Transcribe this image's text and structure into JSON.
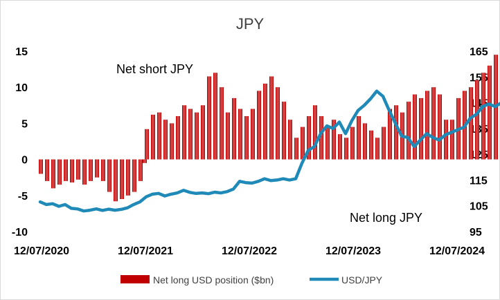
{
  "chart_data": {
    "type": "bar+line",
    "title": "JPY",
    "x_tick_labels": [
      "12/07/2020",
      "12/07/2021",
      "12/07/2022",
      "12/07/2023",
      "12/07/2024"
    ],
    "y_left": {
      "ticks": [
        15,
        10,
        5,
        0,
        -5,
        -10
      ],
      "range": [
        -10,
        15
      ]
    },
    "y_right": {
      "ticks": [
        165,
        155,
        145,
        135,
        125,
        115,
        105,
        95
      ],
      "range": [
        95,
        165
      ]
    },
    "annotations": [
      "Net short JPY",
      "Net long JPY"
    ],
    "series": [
      {
        "name": "Net long USD position ($bn)",
        "type": "bar",
        "axis": "left",
        "color": "#c00000",
        "points": [
          [
            0.0,
            -2.0
          ],
          [
            0.06,
            -3.0
          ],
          [
            0.12,
            -4.0
          ],
          [
            0.18,
            -3.5
          ],
          [
            0.24,
            -3.0
          ],
          [
            0.3,
            -3.2
          ],
          [
            0.36,
            -2.8
          ],
          [
            0.42,
            -3.5
          ],
          [
            0.48,
            -3.0
          ],
          [
            0.54,
            -2.5
          ],
          [
            0.6,
            -3.0
          ],
          [
            0.66,
            -4.5
          ],
          [
            0.72,
            -5.8
          ],
          [
            0.78,
            -5.5
          ],
          [
            0.84,
            -5.0
          ],
          [
            0.9,
            -4.5
          ],
          [
            0.96,
            -3.0
          ],
          [
            1.0,
            -0.5
          ],
          [
            1.02,
            4.2
          ],
          [
            1.08,
            6.2
          ],
          [
            1.14,
            6.5
          ],
          [
            1.2,
            5.5
          ],
          [
            1.26,
            5.0
          ],
          [
            1.32,
            6.0
          ],
          [
            1.38,
            7.5
          ],
          [
            1.44,
            7.0
          ],
          [
            1.5,
            6.5
          ],
          [
            1.56,
            7.5
          ],
          [
            1.62,
            11.5
          ],
          [
            1.68,
            12.0
          ],
          [
            1.74,
            10.0
          ],
          [
            1.8,
            6.5
          ],
          [
            1.86,
            8.5
          ],
          [
            1.92,
            7.0
          ],
          [
            1.98,
            6.0
          ],
          [
            2.04,
            7.0
          ],
          [
            2.1,
            9.5
          ],
          [
            2.16,
            10.5
          ],
          [
            2.22,
            11.5
          ],
          [
            2.28,
            10.0
          ],
          [
            2.34,
            8.0
          ],
          [
            2.4,
            5.5
          ],
          [
            2.46,
            3.0
          ],
          [
            2.52,
            4.5
          ],
          [
            2.58,
            6.0
          ],
          [
            2.64,
            7.5
          ],
          [
            2.7,
            6.0
          ],
          [
            2.76,
            4.5
          ],
          [
            2.82,
            5.5
          ],
          [
            2.88,
            3.5
          ],
          [
            2.94,
            3.0
          ],
          [
            3.0,
            4.5
          ],
          [
            3.06,
            6.0
          ],
          [
            3.12,
            5.0
          ],
          [
            3.18,
            4.0
          ],
          [
            3.24,
            3.0
          ],
          [
            3.3,
            4.5
          ],
          [
            3.36,
            7.0
          ],
          [
            3.42,
            7.5
          ],
          [
            3.48,
            6.5
          ],
          [
            3.54,
            8.0
          ],
          [
            3.6,
            9.0
          ],
          [
            3.66,
            8.5
          ],
          [
            3.72,
            9.5
          ],
          [
            3.78,
            10.0
          ],
          [
            3.84,
            9.0
          ],
          [
            3.9,
            5.5
          ],
          [
            3.96,
            5.5
          ],
          [
            4.02,
            8.5
          ],
          [
            4.08,
            9.5
          ],
          [
            4.14,
            10.0
          ],
          [
            4.2,
            11.0
          ],
          [
            4.26,
            12.0
          ],
          [
            4.32,
            13.0
          ],
          [
            4.38,
            14.5
          ],
          [
            4.44,
            12.5
          ],
          [
            4.5,
            13.0
          ],
          [
            4.56,
            14.0
          ],
          [
            4.62,
            14.0
          ],
          [
            4.68,
            12.0
          ]
        ]
      },
      {
        "name": "USD/JPY",
        "type": "line",
        "axis": "right",
        "color": "#1f8ab7",
        "points": [
          [
            0.0,
            106.5
          ],
          [
            0.06,
            105.5
          ],
          [
            0.12,
            105.8
          ],
          [
            0.18,
            104.8
          ],
          [
            0.24,
            105.5
          ],
          [
            0.3,
            104.0
          ],
          [
            0.36,
            103.8
          ],
          [
            0.42,
            103.0
          ],
          [
            0.48,
            103.3
          ],
          [
            0.54,
            103.8
          ],
          [
            0.6,
            103.2
          ],
          [
            0.66,
            103.7
          ],
          [
            0.72,
            103.3
          ],
          [
            0.78,
            103.6
          ],
          [
            0.84,
            104.2
          ],
          [
            0.9,
            105.5
          ],
          [
            0.96,
            106.5
          ],
          [
            1.02,
            108.5
          ],
          [
            1.08,
            109.5
          ],
          [
            1.14,
            109.8
          ],
          [
            1.2,
            108.8
          ],
          [
            1.26,
            109.5
          ],
          [
            1.32,
            110.0
          ],
          [
            1.38,
            111.0
          ],
          [
            1.44,
            110.2
          ],
          [
            1.5,
            109.8
          ],
          [
            1.56,
            110.0
          ],
          [
            1.62,
            109.7
          ],
          [
            1.68,
            110.3
          ],
          [
            1.74,
            110.0
          ],
          [
            1.8,
            110.5
          ],
          [
            1.86,
            111.5
          ],
          [
            1.92,
            114.5
          ],
          [
            1.98,
            114.0
          ],
          [
            2.04,
            113.8
          ],
          [
            2.1,
            114.5
          ],
          [
            2.16,
            115.5
          ],
          [
            2.22,
            114.8
          ],
          [
            2.28,
            115.0
          ],
          [
            2.34,
            115.5
          ],
          [
            2.4,
            115.0
          ],
          [
            2.46,
            115.5
          ],
          [
            2.52,
            121.5
          ],
          [
            2.58,
            126.5
          ],
          [
            2.64,
            128.0
          ],
          [
            2.7,
            133.0
          ],
          [
            2.76,
            136.0
          ],
          [
            2.82,
            135.0
          ],
          [
            2.88,
            137.5
          ],
          [
            2.94,
            133.0
          ],
          [
            3.0,
            138.0
          ],
          [
            3.06,
            142.0
          ],
          [
            3.12,
            144.0
          ],
          [
            3.18,
            146.5
          ],
          [
            3.24,
            149.5
          ],
          [
            3.3,
            147.5
          ],
          [
            3.36,
            142.0
          ],
          [
            3.42,
            137.0
          ],
          [
            3.48,
            132.0
          ],
          [
            3.54,
            131.5
          ],
          [
            3.6,
            128.0
          ],
          [
            3.66,
            130.5
          ],
          [
            3.72,
            133.0
          ],
          [
            3.78,
            131.5
          ],
          [
            3.84,
            130.5
          ],
          [
            3.9,
            132.5
          ],
          [
            3.96,
            133.5
          ],
          [
            4.02,
            134.5
          ],
          [
            4.08,
            135.5
          ],
          [
            4.14,
            139.0
          ],
          [
            4.2,
            140.5
          ],
          [
            4.26,
            143.5
          ],
          [
            4.32,
            144.5
          ],
          [
            4.38,
            143.5
          ],
          [
            4.44,
            145.0
          ],
          [
            4.5,
            147.5
          ],
          [
            4.56,
            149.5
          ],
          [
            4.62,
            150.0
          ],
          [
            4.68,
            151.0
          ],
          [
            4.74,
            150.5
          ],
          [
            4.8,
            148.0
          ],
          [
            4.86,
            142.0
          ],
          [
            4.92,
            140.5
          ],
          [
            4.98,
            144.5
          ],
          [
            5.04,
            147.5
          ],
          [
            5.1,
            149.0
          ],
          [
            5.16,
            151.0
          ],
          [
            5.22,
            150.5
          ],
          [
            5.28,
            153.5
          ],
          [
            5.34,
            152.0
          ],
          [
            5.4,
            153.0
          ],
          [
            5.46,
            154.5
          ],
          [
            5.52,
            157.5
          ],
          [
            5.58,
            156.5
          ],
          [
            5.64,
            158.0
          ],
          [
            5.7,
            160.5
          ],
          [
            5.76,
            161.5
          ],
          [
            5.8,
            159.0
          ]
        ]
      }
    ],
    "x_index_note": "x position in years since first tick"
  }
}
